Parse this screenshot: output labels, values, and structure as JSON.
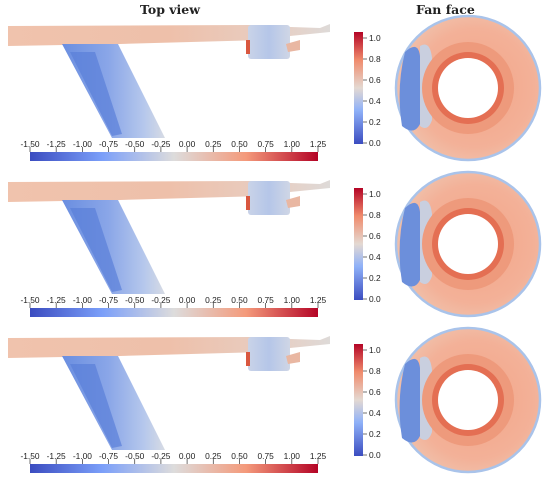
{
  "titles": {
    "top_view": "Top view",
    "fan_face": "Fan face"
  },
  "horizontal_colorbar_ticks": [
    "-1.50",
    "-1.25",
    "-1.00",
    "-0.75",
    "-0.50",
    "-0.25",
    "0.00",
    "0.25",
    "0.50",
    "0.75",
    "1.00",
    "1.25"
  ],
  "vertical_colorbar_ticks": [
    "1.0",
    "0.8",
    "0.6",
    "0.4",
    "0.2",
    "0.0"
  ],
  "panels": [
    {
      "name": "row-1"
    },
    {
      "name": "row-2"
    },
    {
      "name": "row-3"
    }
  ],
  "colors": {
    "red": "#b0172a",
    "orange": "#e88c6c",
    "peach": "#f2bfa6",
    "neutral": "#ded8d6",
    "light_blue": "#b3c5e6",
    "blue": "#6c8fdb",
    "deep_blue": "#4a63c6"
  }
}
